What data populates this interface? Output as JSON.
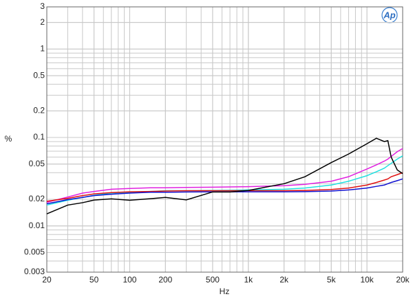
{
  "chart_data": {
    "type": "line",
    "x_label": "Hz",
    "y_label": "%",
    "logo": "Ap",
    "xlog": true,
    "ylog": true,
    "grid": true,
    "xlim": [
      20,
      20000
    ],
    "ylim": [
      0.003,
      3
    ],
    "xticks": [
      20,
      50,
      100,
      200,
      500,
      {
        "value": 1000,
        "label": "1k"
      },
      {
        "value": 2000,
        "label": "2k"
      },
      {
        "value": 5000,
        "label": "5k"
      },
      {
        "value": 10000,
        "label": "10k"
      },
      {
        "value": 20000,
        "label": "20k"
      }
    ],
    "yticks": [
      3,
      2,
      1,
      0.5,
      0.2,
      0.1,
      0.05,
      0.02,
      0.01,
      0.005,
      0.003
    ],
    "x": [
      20,
      30,
      40,
      50,
      70,
      100,
      150,
      200,
      300,
      500,
      700,
      1000,
      2000,
      3000,
      5000,
      7000,
      10000,
      12000,
      14000,
      15000,
      16000,
      18000,
      20000
    ],
    "series": [
      {
        "color": "#e020e0",
        "values": [
          0.0185,
          0.0212,
          0.0235,
          0.0245,
          0.026,
          0.0265,
          0.027,
          0.027,
          0.0272,
          0.0274,
          0.0276,
          0.0278,
          0.0285,
          0.0295,
          0.032,
          0.036,
          0.044,
          0.049,
          0.054,
          0.057,
          0.061,
          0.069,
          0.075
        ]
      },
      {
        "color": "#20e0e0",
        "values": [
          0.0172,
          0.0195,
          0.021,
          0.0222,
          0.0235,
          0.024,
          0.0245,
          0.025,
          0.025,
          0.0252,
          0.0253,
          0.0255,
          0.026,
          0.0268,
          0.029,
          0.032,
          0.037,
          0.041,
          0.045,
          0.048,
          0.051,
          0.057,
          0.062
        ]
      },
      {
        "color": "#e01010",
        "values": [
          0.019,
          0.0205,
          0.022,
          0.023,
          0.0238,
          0.0243,
          0.0245,
          0.0248,
          0.025,
          0.025,
          0.025,
          0.025,
          0.025,
          0.0252,
          0.0258,
          0.0268,
          0.029,
          0.031,
          0.033,
          0.034,
          0.036,
          0.038,
          0.04
        ]
      },
      {
        "color": "#1010d0",
        "values": [
          0.0178,
          0.0198,
          0.021,
          0.022,
          0.0228,
          0.0235,
          0.024,
          0.024,
          0.0242,
          0.0243,
          0.0243,
          0.0243,
          0.0243,
          0.0244,
          0.0248,
          0.0255,
          0.0268,
          0.028,
          0.029,
          0.03,
          0.031,
          0.0325,
          0.034
        ]
      },
      {
        "color": "#000000",
        "values": [
          0.0137,
          0.0172,
          0.0183,
          0.0196,
          0.0202,
          0.0195,
          0.0203,
          0.021,
          0.0197,
          0.0242,
          0.0242,
          0.0252,
          0.03,
          0.036,
          0.052,
          0.065,
          0.085,
          0.098,
          0.09,
          0.092,
          0.06,
          0.043,
          0.039
        ]
      }
    ]
  }
}
